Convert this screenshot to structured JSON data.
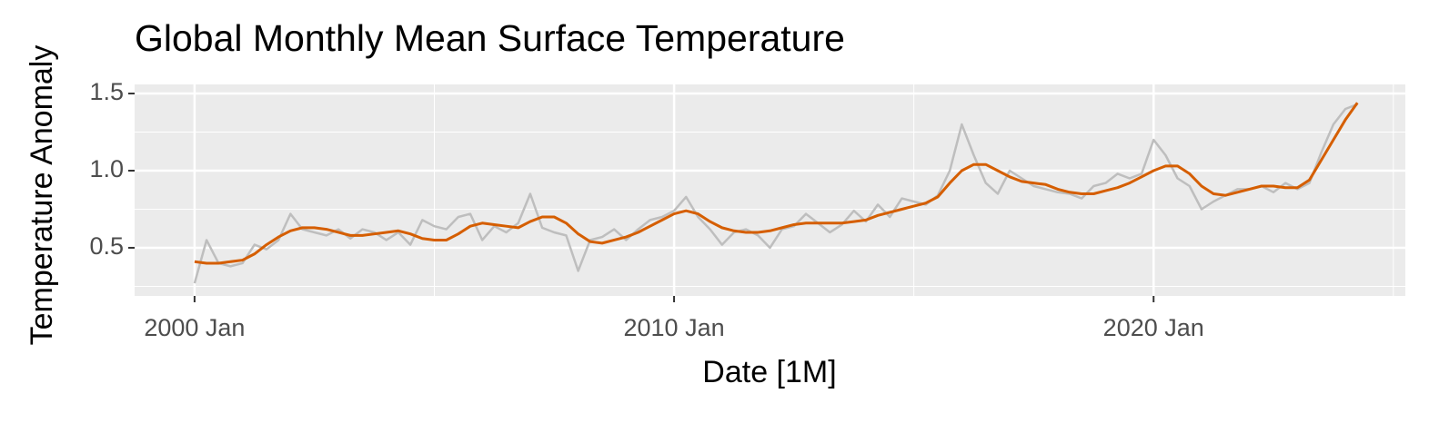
{
  "chart_data": {
    "type": "line",
    "title": "Global Monthly Mean Surface Temperature",
    "x_label": "Date [1M]",
    "y_label": "Temperature Anomaly",
    "x": [
      "2000 Jan",
      "2000 Apr",
      "2000 Jul",
      "2000 Oct",
      "2001 Jan",
      "2001 Apr",
      "2001 Jul",
      "2001 Oct",
      "2002 Jan",
      "2002 Apr",
      "2002 Jul",
      "2002 Oct",
      "2003 Jan",
      "2003 Apr",
      "2003 Jul",
      "2003 Oct",
      "2004 Jan",
      "2004 Apr",
      "2004 Jul",
      "2004 Oct",
      "2005 Jan",
      "2005 Apr",
      "2005 Jul",
      "2005 Oct",
      "2006 Jan",
      "2006 Apr",
      "2006 Jul",
      "2006 Oct",
      "2007 Jan",
      "2007 Apr",
      "2007 Jul",
      "2007 Oct",
      "2008 Jan",
      "2008 Apr",
      "2008 Jul",
      "2008 Oct",
      "2009 Jan",
      "2009 Apr",
      "2009 Jul",
      "2009 Oct",
      "2010 Jan",
      "2010 Apr",
      "2010 Jul",
      "2010 Oct",
      "2011 Jan",
      "2011 Apr",
      "2011 Jul",
      "2011 Oct",
      "2012 Jan",
      "2012 Apr",
      "2012 Jul",
      "2012 Oct",
      "2013 Jan",
      "2013 Apr",
      "2013 Jul",
      "2013 Oct",
      "2014 Jan",
      "2014 Apr",
      "2014 Jul",
      "2014 Oct",
      "2015 Jan",
      "2015 Apr",
      "2015 Jul",
      "2015 Oct",
      "2016 Jan",
      "2016 Apr",
      "2016 Jul",
      "2016 Oct",
      "2017 Jan",
      "2017 Apr",
      "2017 Jul",
      "2017 Oct",
      "2018 Jan",
      "2018 Apr",
      "2018 Jul",
      "2018 Oct",
      "2019 Jan",
      "2019 Apr",
      "2019 Jul",
      "2019 Oct",
      "2020 Jan",
      "2020 Apr",
      "2020 Jul",
      "2020 Oct",
      "2021 Jan",
      "2021 Apr",
      "2021 Jul",
      "2021 Oct",
      "2022 Jan",
      "2022 Apr",
      "2022 Jul",
      "2022 Oct",
      "2023 Jan",
      "2023 Apr",
      "2023 Jul",
      "2023 Oct",
      "2024 Jan",
      "2024 Apr"
    ],
    "series": [
      {
        "color": "#bebebe",
        "values": [
          0.27,
          0.55,
          0.4,
          0.38,
          0.4,
          0.52,
          0.49,
          0.55,
          0.72,
          0.62,
          0.6,
          0.58,
          0.62,
          0.56,
          0.62,
          0.6,
          0.55,
          0.6,
          0.52,
          0.68,
          0.64,
          0.62,
          0.7,
          0.72,
          0.55,
          0.64,
          0.6,
          0.66,
          0.85,
          0.63,
          0.6,
          0.58,
          0.35,
          0.55,
          0.57,
          0.62,
          0.55,
          0.62,
          0.68,
          0.7,
          0.74,
          0.83,
          0.7,
          0.62,
          0.52,
          0.6,
          0.62,
          0.58,
          0.5,
          0.62,
          0.64,
          0.72,
          0.66,
          0.6,
          0.65,
          0.74,
          0.67,
          0.78,
          0.7,
          0.82,
          0.8,
          0.78,
          0.84,
          1.0,
          1.3,
          1.1,
          0.92,
          0.85,
          1.0,
          0.95,
          0.9,
          0.88,
          0.86,
          0.85,
          0.82,
          0.9,
          0.92,
          0.98,
          0.95,
          0.98,
          1.2,
          1.1,
          0.95,
          0.9,
          0.75,
          0.8,
          0.84,
          0.88,
          0.88,
          0.9,
          0.86,
          0.92,
          0.88,
          0.92,
          1.12,
          1.3,
          1.4,
          1.43
        ]
      },
      {
        "color": "#d55e00",
        "values": [
          0.41,
          0.4,
          0.4,
          0.41,
          0.42,
          0.46,
          0.52,
          0.57,
          0.61,
          0.63,
          0.63,
          0.62,
          0.6,
          0.58,
          0.58,
          0.59,
          0.6,
          0.61,
          0.59,
          0.56,
          0.55,
          0.55,
          0.59,
          0.64,
          0.66,
          0.65,
          0.64,
          0.63,
          0.67,
          0.7,
          0.7,
          0.66,
          0.59,
          0.54,
          0.53,
          0.55,
          0.57,
          0.6,
          0.64,
          0.68,
          0.72,
          0.74,
          0.72,
          0.67,
          0.63,
          0.61,
          0.6,
          0.6,
          0.61,
          0.63,
          0.65,
          0.66,
          0.66,
          0.66,
          0.66,
          0.67,
          0.68,
          0.71,
          0.73,
          0.75,
          0.77,
          0.79,
          0.83,
          0.92,
          1.0,
          1.04,
          1.04,
          1.0,
          0.96,
          0.93,
          0.92,
          0.91,
          0.88,
          0.86,
          0.85,
          0.85,
          0.87,
          0.89,
          0.92,
          0.96,
          1.0,
          1.03,
          1.03,
          0.98,
          0.9,
          0.85,
          0.84,
          0.86,
          0.88,
          0.9,
          0.9,
          0.89,
          0.89,
          0.94,
          1.07,
          1.2,
          1.33,
          1.44
        ]
      }
    ],
    "xlim": [
      "1998 Oct",
      "2025 Apr"
    ],
    "xticks": [
      "2000 Jan",
      "2010 Jan",
      "2020 Jan"
    ],
    "ylim": [
      0.188,
      1.559
    ],
    "yticks": [
      0.5,
      {
        "value": 1,
        "label": "1.0"
      },
      1.5
    ],
    "grid": true
  }
}
